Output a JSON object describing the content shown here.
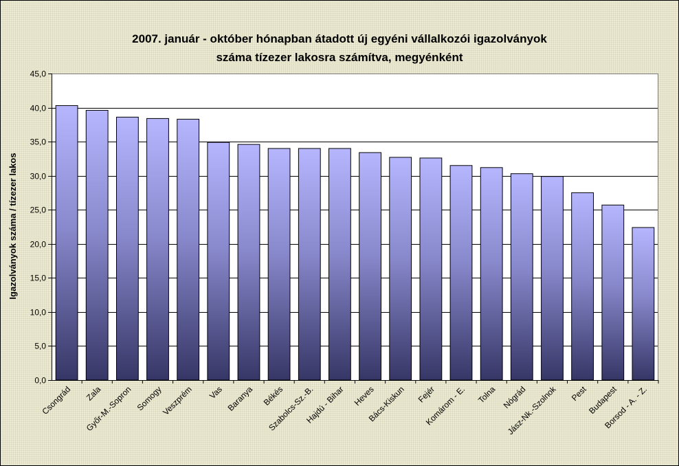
{
  "chart_data": {
    "type": "bar",
    "title_lines": [
      "2007. január - október hónapban átadott új egyéni vállalkozói  igazolványok",
      "száma tízezer lakosra számítva, megyénként"
    ],
    "ylabel": "Igazolványok száma / tízezer lakos",
    "xlabel": "",
    "ylim": [
      0,
      45
    ],
    "yticks": [
      "0,0",
      "5,0",
      "10,0",
      "15,0",
      "20,0",
      "25,0",
      "30,0",
      "35,0",
      "40,0",
      "45,0"
    ],
    "grid": true,
    "categories": [
      "Csongrád",
      "Zala",
      "Győr-M.-Sopron",
      "Somogy",
      "Veszprém",
      "Vas",
      "Baranya",
      "Békés",
      "Szabolcs-Sz.-B.",
      "Hajdú - Bihar",
      "Heves",
      "Bács-Kiskun",
      "Fejér",
      "Komárom - E.",
      "Tolna",
      "Nógrád",
      "Jász-Nk.-Szolnok",
      "Pest",
      "Budapest",
      "Borsod - A. - Z."
    ],
    "values": [
      40.3,
      39.6,
      38.6,
      38.4,
      38.3,
      34.9,
      34.6,
      34.0,
      34.0,
      34.0,
      33.4,
      32.7,
      32.6,
      31.5,
      31.2,
      30.3,
      29.9,
      27.5,
      25.7,
      22.4
    ],
    "colors": {
      "bar_top": "#b4b4ff",
      "bar_bottom": "#3a3a6a",
      "plot_bg": "#ffffff",
      "grid": "#000000"
    }
  }
}
